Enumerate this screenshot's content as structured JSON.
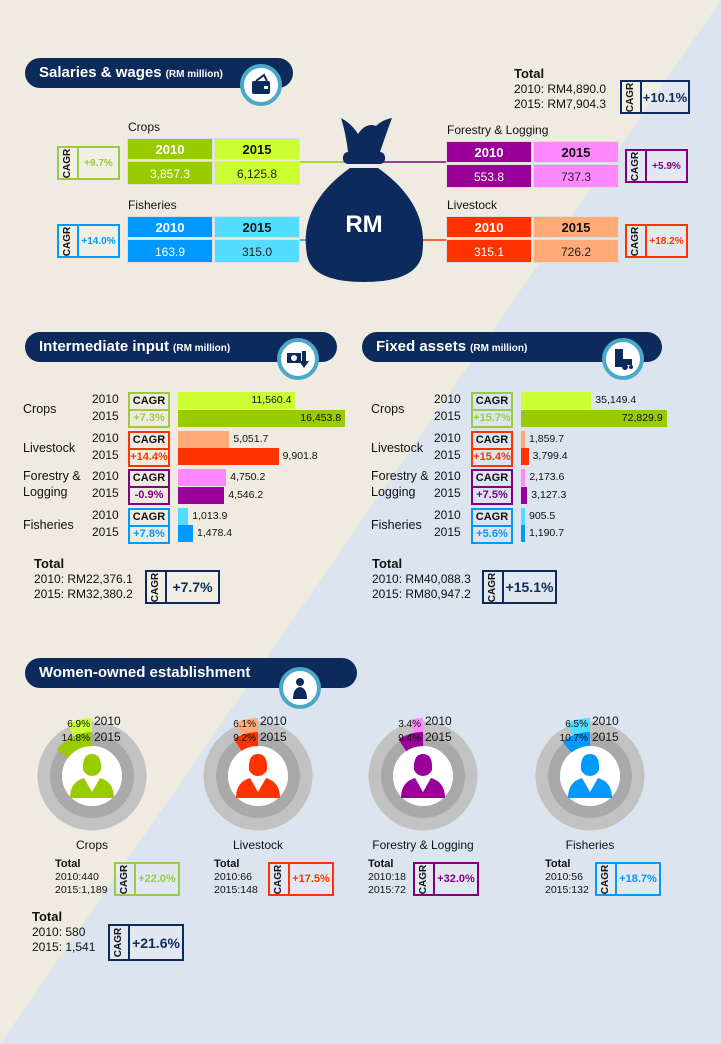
{
  "colors": {
    "navy": "#0d2a5c",
    "crops": {
      "dark": "#99cc00",
      "light": "#ccff33",
      "border": "#99cc44"
    },
    "livestock": {
      "dark": "#ff3300",
      "light": "#ffaa77",
      "border": "#ff3300"
    },
    "forestry": {
      "dark": "#990099",
      "light": "#ff88ff",
      "border": "#800080"
    },
    "fisheries": {
      "dark": "#0099ff",
      "light": "#55ddff",
      "border": "#0099ff"
    }
  },
  "cagr_label": "CAGR",
  "chart_data": [
    {
      "type": "table",
      "title": "Salaries & wages",
      "unit": "(RM million)",
      "center_label": "RM",
      "columns": [
        "2010",
        "2015"
      ],
      "rows": [
        {
          "key": "crops",
          "category": "Crops",
          "values": [
            3857.3,
            6125.8
          ],
          "cagr": "+9.7%"
        },
        {
          "key": "fisheries",
          "category": "Fisheries",
          "values": [
            163.9,
            315.0
          ],
          "cagr": "+14.0%"
        },
        {
          "key": "forestry",
          "category": "Forestry & Logging",
          "values": [
            553.8,
            737.3
          ],
          "cagr": "+5.9%"
        },
        {
          "key": "livestock",
          "category": "Livestock",
          "values": [
            315.1,
            726.2
          ],
          "cagr": "+18.2%"
        }
      ],
      "total": {
        "label": "Total",
        "line2010": "2010: RM4,890.0",
        "line2015": "2015: RM7,904.3",
        "cagr": "+10.1%"
      }
    },
    {
      "type": "bar",
      "title": "Intermediate input",
      "unit": "(RM million)",
      "keys": [
        "crops",
        "livestock",
        "forestry",
        "fisheries"
      ],
      "categories": [
        "Crops",
        "Livestock",
        "Forestry & Logging",
        "Fisheries"
      ],
      "series": [
        {
          "name": "2010",
          "values": [
            11560.4,
            5051.7,
            4750.2,
            1013.9
          ]
        },
        {
          "name": "2015",
          "values": [
            16453.8,
            9901.8,
            4546.2,
            1478.4
          ]
        }
      ],
      "cagr": [
        "+7.3%",
        "+14.4%",
        "-0.9%",
        "+7.8%"
      ],
      "total": {
        "label": "Total",
        "line2010": "2010: RM22,376.1",
        "line2015": "2015: RM32,380.2",
        "cagr": "+7.7%"
      }
    },
    {
      "type": "bar",
      "title": "Fixed assets",
      "unit": "(RM million)",
      "keys": [
        "crops",
        "livestock",
        "forestry",
        "fisheries"
      ],
      "categories": [
        "Crops",
        "Livestock",
        "Forestry & Logging",
        "Fisheries"
      ],
      "series": [
        {
          "name": "2010",
          "values": [
            35149.4,
            1859.7,
            2173.6,
            905.5
          ]
        },
        {
          "name": "2015",
          "values": [
            72829.9,
            3799.4,
            3127.3,
            1190.7
          ]
        }
      ],
      "cagr": [
        "+15.7%",
        "+15.4%",
        "+7.5%",
        "+5.6%"
      ],
      "total": {
        "label": "Total",
        "line2010": "2010: RM40,088.3",
        "line2015": "2015: RM80,947.2",
        "cagr": "+15.1%"
      }
    },
    {
      "type": "pie",
      "title": "Women-owned establishment",
      "keys": [
        "crops",
        "livestock",
        "forestry",
        "fisheries"
      ],
      "categories": [
        "Crops",
        "Livestock",
        "Forestry & Logging",
        "Fisheries"
      ],
      "series": [
        {
          "name": "2010",
          "share_pct": [
            6.9,
            6.1,
            3.4,
            6.5
          ]
        },
        {
          "name": "2015",
          "share_pct": [
            14.8,
            9.2,
            9.4,
            10.7
          ]
        }
      ],
      "totals": [
        {
          "label": "Total",
          "line2010": "2010:440",
          "line2015": "2015:1,189",
          "cagr": "+22.0%"
        },
        {
          "label": "Total",
          "line2010": "2010:66",
          "line2015": "2015:148",
          "cagr": "+17.5%"
        },
        {
          "label": "Total",
          "line2010": "2010:18",
          "line2015": "2015:72",
          "cagr": "+32.0%"
        },
        {
          "label": "Total",
          "line2010": "2010:56",
          "line2015": "2015:132",
          "cagr": "+18.7%"
        }
      ],
      "grand_total": {
        "label": "Total",
        "line2010": "2010: 580",
        "line2015": "2015: 1,541",
        "cagr": "+21.6%"
      }
    }
  ]
}
